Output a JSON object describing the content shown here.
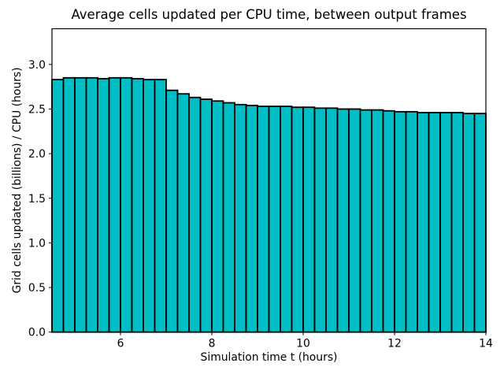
{
  "figure": {
    "background_color": "#ffffff"
  },
  "chart_data": {
    "type": "bar",
    "title": "Average cells updated per CPU time, between output frames",
    "xlabel": "Simulation time t (hours)",
    "ylabel": "Grid cells updated (billions) / CPU (hours)",
    "xlim": [
      4.5,
      14
    ],
    "ylim": [
      0,
      3.4
    ],
    "xticks": [
      6,
      8,
      10,
      12,
      14
    ],
    "xtick_labels": [
      "6",
      "8",
      "10",
      "12",
      "14"
    ],
    "yticks": [
      0.0,
      0.5,
      1.0,
      1.5,
      2.0,
      2.5,
      3.0
    ],
    "ytick_labels": [
      "0.0",
      "0.5",
      "1.0",
      "1.5",
      "2.0",
      "2.5",
      "3.0"
    ],
    "grid": false,
    "legend": null,
    "bar_width": 0.25,
    "bar_color": "#00bec3",
    "bar_edge_color": "#000000",
    "x_left": [
      4.5,
      4.75,
      5.0,
      5.25,
      5.5,
      5.75,
      6.0,
      6.25,
      6.5,
      6.75,
      7.0,
      7.25,
      7.5,
      7.75,
      8.0,
      8.25,
      8.5,
      8.75,
      9.0,
      9.25,
      9.5,
      9.75,
      10.0,
      10.25,
      10.5,
      10.75,
      11.0,
      11.25,
      11.5,
      11.75,
      12.0,
      12.25,
      12.5,
      12.75,
      13.0,
      13.25,
      13.5,
      13.75
    ],
    "values": [
      2.83,
      2.85,
      2.85,
      2.85,
      2.84,
      2.85,
      2.85,
      2.84,
      2.83,
      2.83,
      2.71,
      2.67,
      2.63,
      2.61,
      2.59,
      2.57,
      2.55,
      2.54,
      2.53,
      2.53,
      2.53,
      2.52,
      2.52,
      2.51,
      2.51,
      2.5,
      2.5,
      2.49,
      2.49,
      2.48,
      2.47,
      2.47,
      2.46,
      2.46,
      2.46,
      2.46,
      2.45,
      2.45
    ]
  }
}
